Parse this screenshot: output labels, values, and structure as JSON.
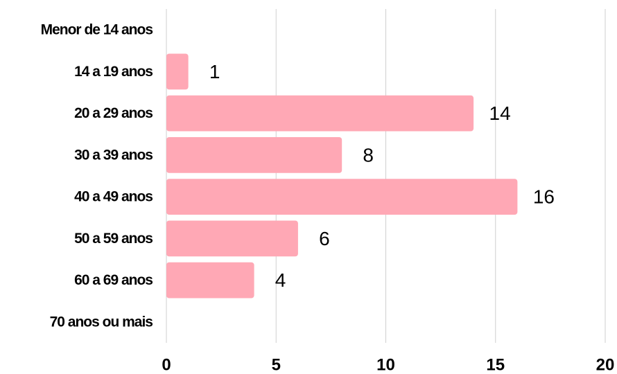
{
  "chart_data": {
    "type": "bar",
    "orientation": "horizontal",
    "categories": [
      "Menor de 14 anos",
      "14 a 19 anos",
      "20 a 29 anos",
      "30 a 39 anos",
      "40 a 49 anos",
      "50 a 59 anos",
      "60 a 69 anos",
      "70 anos ou mais"
    ],
    "values": [
      null,
      1,
      14,
      8,
      16,
      6,
      4,
      null
    ],
    "color": "#ffa8b5",
    "xlim": [
      0,
      20
    ],
    "xticks": [
      0,
      5,
      10,
      15,
      20
    ],
    "grid": true
  }
}
